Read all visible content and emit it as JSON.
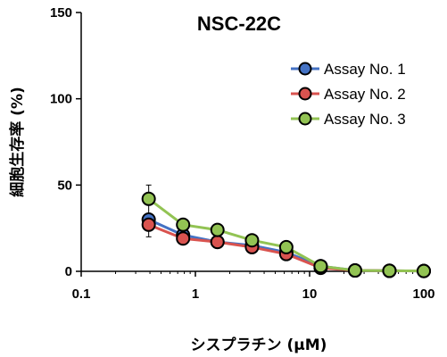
{
  "chart_data": {
    "type": "line",
    "title": "NSC-22C",
    "xlabel": "シスプラチン (μM)",
    "ylabel": "細胞生存率 (%)",
    "x_scale": "log",
    "xlim": [
      0.1,
      100
    ],
    "ylim": [
      0,
      150
    ],
    "x_ticks": [
      "0.1",
      "1",
      "10",
      "100"
    ],
    "y_ticks": [
      "0",
      "50",
      "100",
      "150"
    ],
    "grid": false,
    "legend_position": "top-right",
    "x": [
      0.39,
      0.78,
      1.56,
      3.13,
      6.25,
      12.5,
      25,
      50,
      100
    ],
    "series": [
      {
        "name": "Assay No. 1",
        "color": "#4472c4",
        "values": [
          30,
          21,
          17,
          15,
          11,
          3,
          0.5,
          0.3,
          0.2
        ]
      },
      {
        "name": "Assay No. 2",
        "color": "#d9534f",
        "values": [
          27,
          19,
          17,
          14,
          10,
          2,
          0.5,
          0.3,
          0.2
        ]
      },
      {
        "name": "Assay No. 3",
        "color": "#92c353",
        "values": [
          42,
          27,
          24,
          18,
          14,
          3,
          0.5,
          0.3,
          0.2
        ]
      }
    ],
    "error_bar": {
      "x": 0.39,
      "low": 20,
      "high": 50
    }
  }
}
